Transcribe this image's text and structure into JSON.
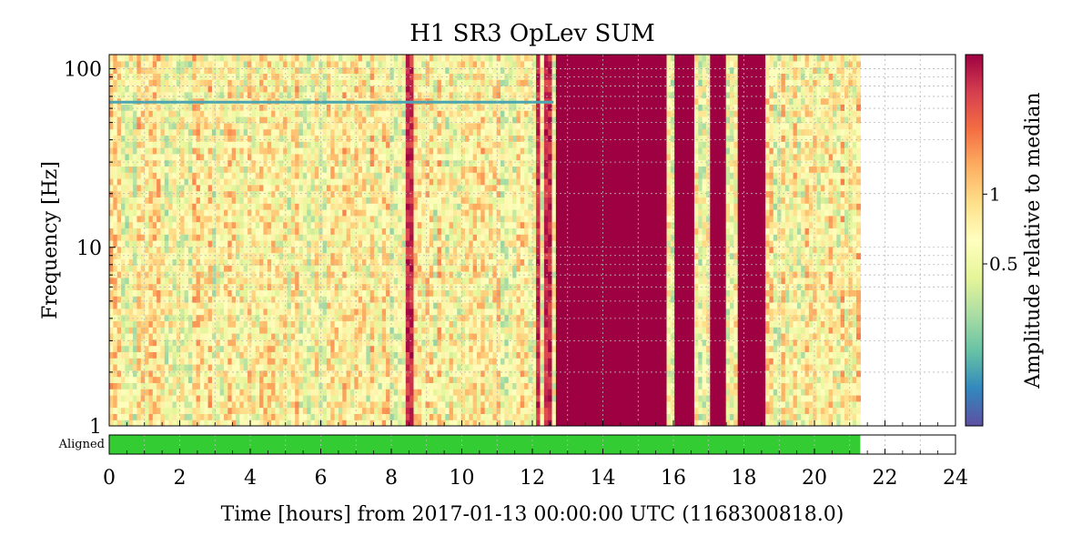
{
  "chart_data": {
    "type": "heatmap",
    "title": "H1 SR3 OpLev SUM",
    "xlabel": "Time [hours] from 2017-01-13 00:00:00 UTC (1168300818.0)",
    "ylabel": "Frequency [Hz]",
    "xlim": [
      0,
      24
    ],
    "ylim": [
      1,
      120
    ],
    "yscale": "log",
    "x_ticks": [
      "0",
      "2",
      "4",
      "6",
      "8",
      "10",
      "12",
      "14",
      "16",
      "18",
      "20",
      "22",
      "24"
    ],
    "y_ticks": [
      "1",
      "10",
      "100"
    ],
    "grid": true,
    "data_end_hours": 21.3,
    "colorbar": {
      "label": "Amplitude relative to median",
      "scale": "log",
      "ticks": [
        "0.5",
        "1"
      ],
      "colormap": "Spectral_r",
      "colors": [
        "#5e4fa2",
        "#3288bd",
        "#66c2a5",
        "#abdda4",
        "#e6f598",
        "#ffffbf",
        "#fee08b",
        "#fdae61",
        "#f46d43",
        "#d53e4f",
        "#9e0142"
      ]
    },
    "saturated_bands_hours": [
      [
        12.6,
        15.8
      ],
      [
        16.0,
        16.5
      ],
      [
        17.0,
        17.45
      ],
      [
        17.8,
        18.5
      ]
    ],
    "bright_lines_hours": [
      8.45,
      8.5,
      12.15,
      12.3,
      12.45
    ],
    "persistent_line_hz": 65,
    "segment_bar": {
      "label": "Aligned",
      "color": "#33cc33",
      "segments_hours": [
        [
          0,
          21.3
        ]
      ]
    }
  }
}
